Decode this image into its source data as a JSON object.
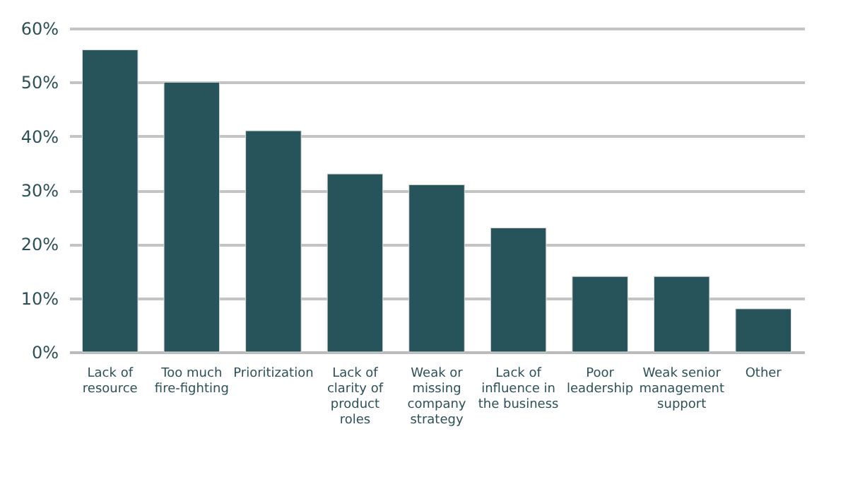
{
  "chart_data": {
    "type": "bar",
    "categories": [
      "Lack of resource",
      "Too much fire-fighting",
      "Prioritization",
      "Lack of clarity of product roles",
      "Weak or missing company strategy",
      "Lack of influence in the business",
      "Poor leadership",
      "Weak senior management support",
      "Other"
    ],
    "values": [
      56,
      50,
      41,
      33,
      31,
      23,
      14,
      14,
      8
    ],
    "color": "#26545a",
    "ylim": [
      0,
      60
    ],
    "yticks": [
      {
        "value": 0,
        "label": "0%"
      },
      {
        "value": 10,
        "label": "10%"
      },
      {
        "value": 20,
        "label": "20%"
      },
      {
        "value": 30,
        "label": "30%"
      },
      {
        "value": 40,
        "label": "40%"
      },
      {
        "value": 50,
        "label": "50%"
      },
      {
        "value": 60,
        "label": "60%"
      }
    ],
    "grid": "y"
  }
}
